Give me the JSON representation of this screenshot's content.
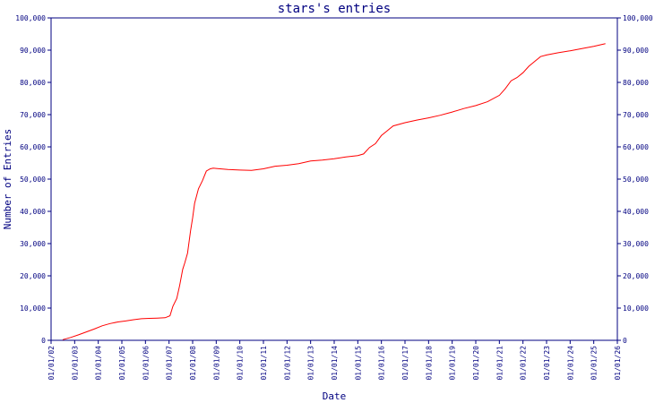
{
  "chart_data": {
    "type": "line",
    "title": "stars's entries",
    "xlabel": "Date",
    "ylabel": "Number of Entries",
    "x_ticks": [
      "01/01/02",
      "01/01/03",
      "01/01/04",
      "01/01/05",
      "01/01/06",
      "01/01/07",
      "01/01/08",
      "01/01/09",
      "01/01/10",
      "01/01/11",
      "01/01/12",
      "01/01/13",
      "01/01/14",
      "01/01/15",
      "01/01/16",
      "01/01/17",
      "01/01/18",
      "01/01/19",
      "01/01/20",
      "01/01/21",
      "01/01/22",
      "01/01/23",
      "01/01/24",
      "01/01/25",
      "01/01/26"
    ],
    "y_ticks": [
      "0",
      "10,000",
      "20,000",
      "30,000",
      "40,000",
      "50,000",
      "60,000",
      "70,000",
      "80,000",
      "90,000",
      "100,000"
    ],
    "xlim": [
      "2002-01-01",
      "2026-01-01"
    ],
    "ylim": [
      0,
      100000
    ],
    "grid": false,
    "line_color": "#ff0000",
    "axis_color": "#000080",
    "series": [
      {
        "x": [
          "2002-07-01",
          "2002-11-01",
          "2003-03-01",
          "2003-07-01",
          "2003-11-01",
          "2004-03-01",
          "2004-07-01",
          "2004-11-01",
          "2005-03-01",
          "2005-07-01",
          "2005-11-01",
          "2006-03-01",
          "2006-07-01",
          "2006-11-01",
          "2007-01-15",
          "2007-03-01",
          "2007-05-01",
          "2007-06-15",
          "2007-08-01",
          "2007-09-01",
          "2007-10-15",
          "2007-12-01",
          "2008-01-01",
          "2008-02-01",
          "2008-04-01",
          "2008-06-01",
          "2008-08-01",
          "2008-10-01",
          "2008-11-15",
          "2009-01-01",
          "2009-03-01",
          "2009-07-01",
          "2010-01-01",
          "2010-07-01",
          "2011-01-01",
          "2011-07-01",
          "2012-01-01",
          "2012-07-01",
          "2013-01-01",
          "2013-07-01",
          "2014-01-01",
          "2014-07-01",
          "2015-01-01",
          "2015-04-01",
          "2015-07-01",
          "2015-10-01",
          "2016-01-01",
          "2016-04-01",
          "2016-07-01",
          "2017-01-01",
          "2017-07-01",
          "2018-01-01",
          "2018-07-01",
          "2019-01-01",
          "2019-07-01",
          "2020-01-01",
          "2020-07-01",
          "2021-01-01",
          "2021-04-01",
          "2021-07-01",
          "2021-10-01",
          "2022-01-01",
          "2022-04-01",
          "2022-07-01",
          "2022-10-01",
          "2023-01-01",
          "2023-07-01",
          "2024-01-01",
          "2024-07-01",
          "2025-01-01",
          "2025-07-01"
        ],
        "values": [
          200,
          900,
          1700,
          2600,
          3500,
          4500,
          5200,
          5700,
          6000,
          6400,
          6700,
          6800,
          6900,
          7000,
          7600,
          10500,
          13000,
          17000,
          22000,
          24000,
          27000,
          34000,
          38000,
          42500,
          47000,
          49500,
          52500,
          53200,
          53400,
          53300,
          53200,
          53000,
          52800,
          52700,
          53200,
          54000,
          54300,
          54800,
          55600,
          55900,
          56300,
          56900,
          57300,
          57800,
          59800,
          61000,
          63500,
          65000,
          66500,
          67500,
          68300,
          69000,
          69800,
          70800,
          71900,
          72800,
          74000,
          76000,
          78000,
          80500,
          81500,
          83000,
          85000,
          86500,
          88000,
          88500,
          89200,
          89800,
          90500,
          91200,
          92000
        ]
      }
    ]
  }
}
